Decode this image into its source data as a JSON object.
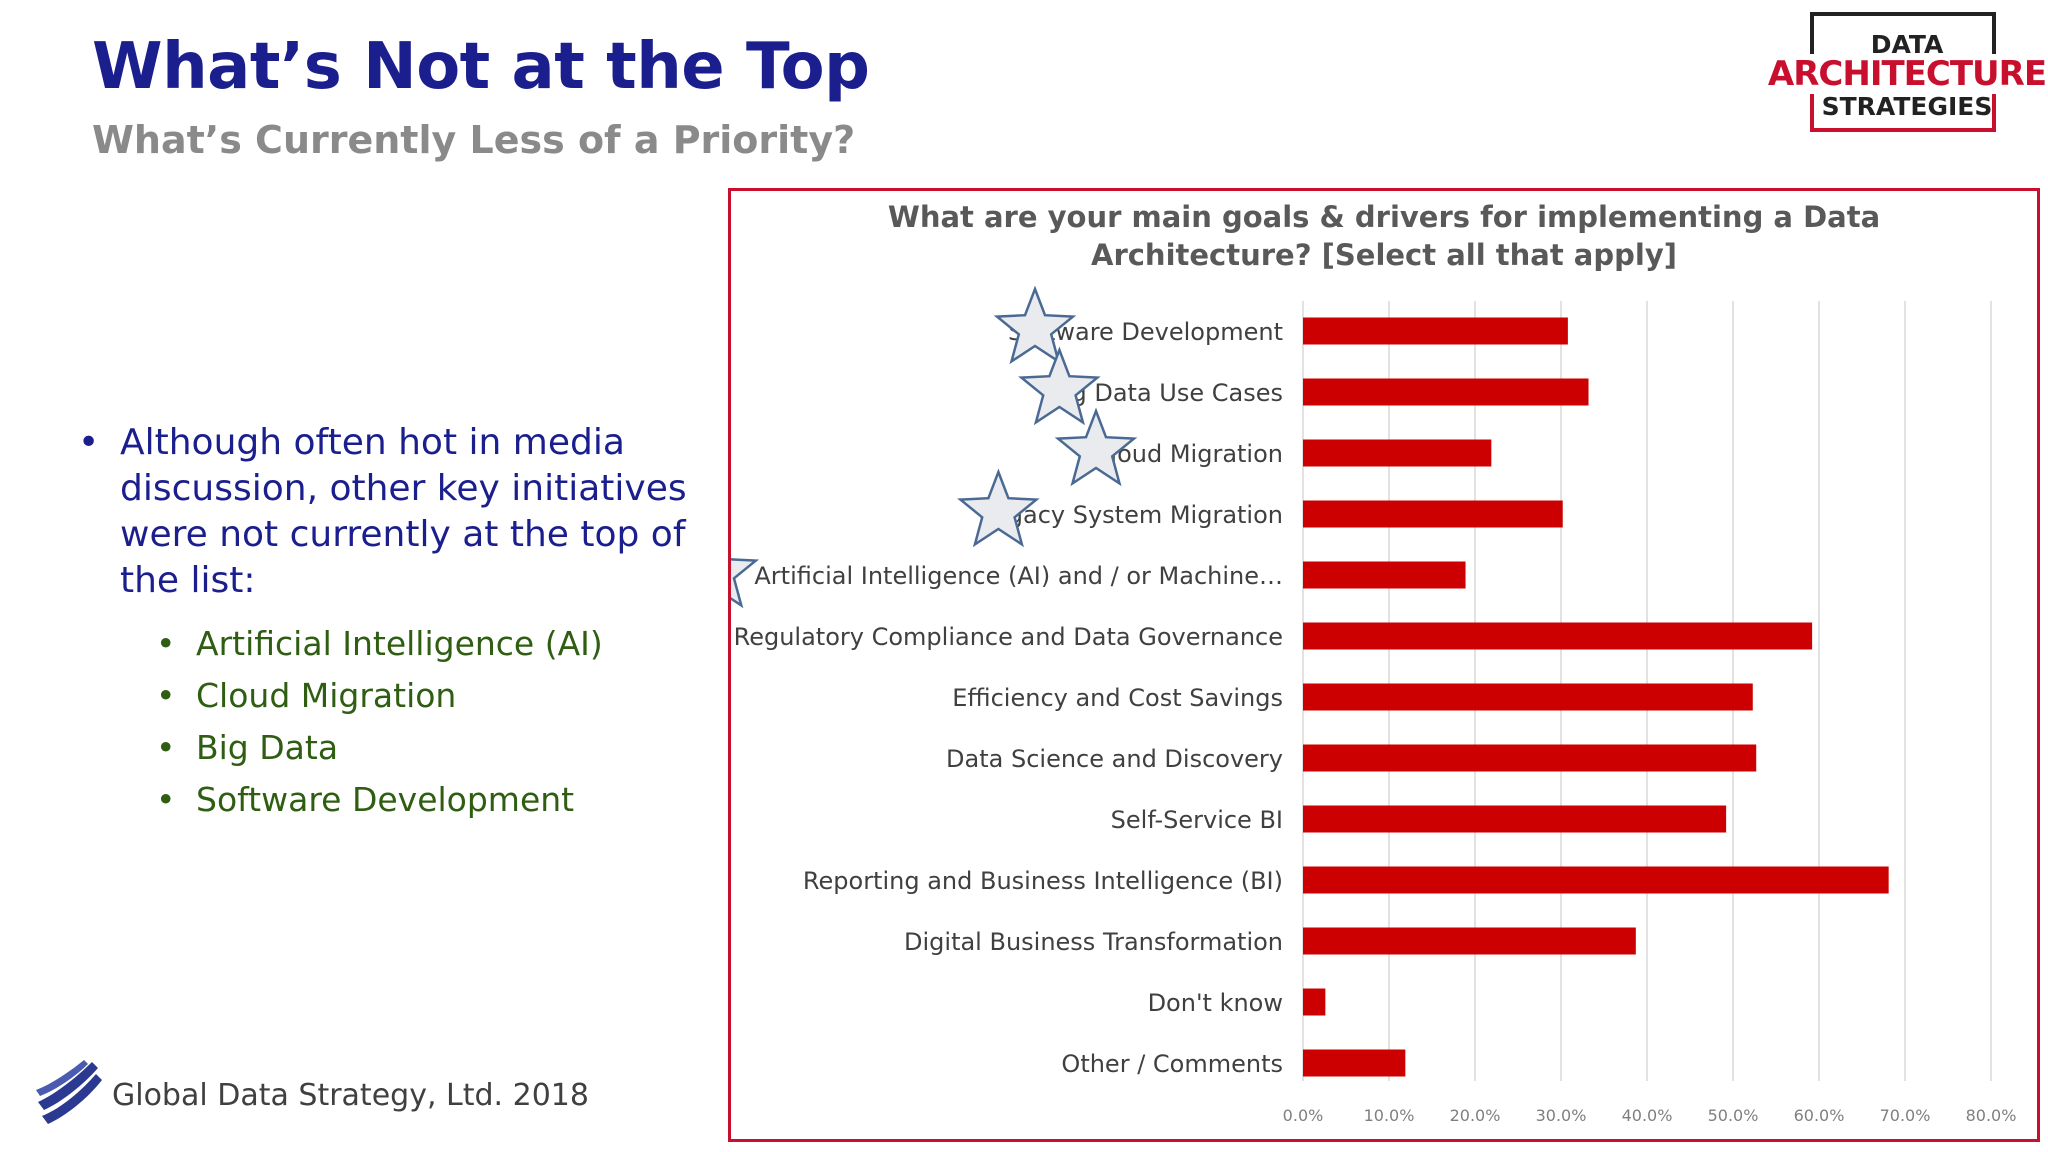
{
  "slide": {
    "title": "What’s Not at the Top",
    "subtitle": "What’s Currently Less of a Priority?",
    "logo": {
      "line1": "DATA",
      "line2": "ARCHITECTURE",
      "line3": "STRATEGIES",
      "colors": {
        "red": "#c8102e",
        "dark": "#222222"
      }
    },
    "bullet_symbol": "•",
    "main_bullet": "Although often hot in media discussion, other key initiatives were not currently at the top of the list:",
    "sub_bullets": [
      "Artificial Intelligence (AI)",
      "Cloud Migration",
      "Big Data",
      "Software Development"
    ],
    "footer": "Global Data Strategy, Ltd. 2018",
    "colors": {
      "title": "#1b1f8e",
      "subtitle": "#8a8a8a",
      "sub_bullet": "#2f5e12",
      "frame": "#c8102e"
    }
  },
  "chart_data": {
    "type": "bar",
    "orientation": "horizontal",
    "title_line1": "What are your main goals & drivers for implementing  a Data",
    "title_line2": "Architecture?  [Select all that apply]",
    "categories": [
      "Software Development",
      "Big Data Use Cases",
      "Cloud Migration",
      "Legacy System Migration",
      "Artificial Intelligence (AI) and / or Machine…",
      "Regulatory Compliance and Data Governance",
      "Efficiency and Cost Savings",
      "Data Science and Discovery",
      "Self-Service BI",
      "Reporting and Business Intelligence (BI)",
      "Digital Business Transformation",
      "Don't know",
      "Other / Comments"
    ],
    "values": [
      30.8,
      33.2,
      21.9,
      30.2,
      18.9,
      59.2,
      52.3,
      52.7,
      49.2,
      68.1,
      38.7,
      2.6,
      11.9
    ],
    "starred": [
      true,
      true,
      true,
      true,
      true,
      false,
      false,
      false,
      false,
      false,
      false,
      false,
      false
    ],
    "xlim": [
      0,
      80
    ],
    "xticks": [
      "0.0%",
      "10.0%",
      "20.0%",
      "30.0%",
      "40.0%",
      "50.0%",
      "60.0%",
      "70.0%",
      "80.0%"
    ],
    "bar_color": "#cc0000",
    "star_color": "#4a6a94",
    "grid": true
  }
}
